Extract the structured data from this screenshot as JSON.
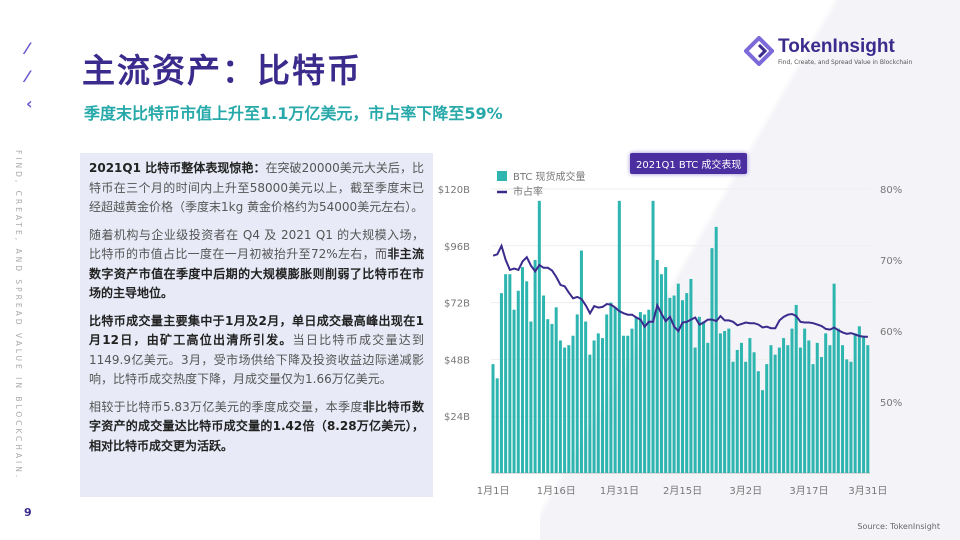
{
  "header": {
    "title": "主流资产：比特币",
    "subtitle": "季度末比特币市值上升至1.1万亿美元，市占率下降至59%"
  },
  "logo": {
    "name": "TokenInsight",
    "tagline": "Find, Create, and Spread Value in Blockchain"
  },
  "side": {
    "slogan": "FIND, CREATE, AND SPREAD VALUE IN BLOCKCHAIN.",
    "page": "9"
  },
  "textbox": {
    "p1_bold": "2021Q1 比特币整体表现惊艳：",
    "p1": "在突破20000美元大关后，比特币在三个月的时间内上升至58000美元以上，截至季度末已经超越黄金价格（季度末1kg 黄金价格约为54000美元左右）。",
    "p2": "随着机构与企业级投资者在 Q4 及 2021 Q1 的大规模入场，比特币的市值占比一度在一月初被抬升至72%左右，而",
    "p2_bold": "非主流数字资产市值在季度中后期的大规模膨胀则削弱了比特币在市场的主导地位。",
    "p3_bold": "比特币成交量主要集中于1月及2月，单日成交最高峰出现在1月12日，由矿工高位出清所引发。",
    "p3": "当日比特币成交量达到1149.9亿美元。3月，受市场供给下降及投资收益边际递减影响，比特币成交热度下降，月成交量仅为1.66万亿美元。",
    "p4": "相较于比特币5.83万亿美元的季度成交量，本季度",
    "p4_bold": "非比特币数字资产的成交量达比特币成交量的1.42倍（8.28万亿美元），相对比特币成交更为活跃。"
  },
  "source": "Source: TokenInsight",
  "colors": {
    "bar": "#2fb5b0",
    "line": "#3a2b8c",
    "title": "#3a2b8c",
    "subtitle": "#27a9a9"
  },
  "chart_data": {
    "type": "bar+line",
    "title": "2021Q1 BTC 成交表现",
    "legend": [
      "BTC 现货成交量",
      "市占率"
    ],
    "legend_placement": "top-left",
    "x_ticks": [
      "1月1日",
      "1月16日",
      "1月31日",
      "2月15日",
      "3月2日",
      "3月17日",
      "3月31日"
    ],
    "y_left": {
      "ticks": [
        "$24B",
        "$48B",
        "$72B",
        "$96B",
        "$120B"
      ],
      "range": [
        0,
        120
      ],
      "unit": "B USD"
    },
    "y_right": {
      "ticks": [
        "50%",
        "60%",
        "70%",
        "80%"
      ],
      "range": [
        40,
        80
      ]
    },
    "grid": true,
    "series": [
      {
        "name": "BTC 现货成交量",
        "type": "bar",
        "values": [
          46,
          40,
          76,
          84,
          84,
          69,
          77,
          87,
          81,
          64,
          90,
          115,
          75,
          65,
          63,
          70,
          56,
          53,
          54,
          58,
          67,
          94,
          64,
          50,
          56,
          59,
          57,
          67,
          72,
          70,
          115,
          58,
          58,
          61,
          66,
          68,
          67,
          69,
          115,
          90,
          84,
          87,
          74,
          75,
          80,
          73,
          76,
          82,
          53,
          66,
          64,
          55,
          95,
          104,
          59,
          60,
          61,
          47,
          52,
          55,
          47,
          57,
          51,
          43,
          35,
          46,
          54,
          50,
          53,
          57,
          54,
          61,
          71,
          53,
          61,
          56,
          46,
          55,
          49,
          59,
          54,
          80,
          61,
          54,
          48,
          47,
          59,
          62,
          58,
          54
        ]
      },
      {
        "name": "市占率",
        "type": "line",
        "values": [
          70.6,
          70.8,
          72.0,
          70.0,
          68.6,
          68.8,
          68.6,
          69.8,
          70.4,
          69.2,
          68.4,
          69.3,
          68.9,
          68.9,
          68.5,
          67.6,
          66.5,
          66.3,
          65.4,
          64.6,
          64.8,
          64.5,
          63.6,
          62.5,
          63.5,
          63.3,
          63.4,
          63.8,
          63.7,
          63.3,
          62.8,
          62.5,
          62.3,
          62.3,
          61.9,
          61.6,
          60.6,
          61.3,
          61.3,
          63.6,
          62.4,
          61.4,
          62.0,
          60.6,
          60.0,
          61.2,
          61.3,
          61.6,
          61.9,
          60.9,
          61.2,
          61.6,
          61.6,
          61.4,
          62.1,
          61.5,
          61.5,
          61.3,
          60.8,
          61.0,
          61.2,
          61.1,
          61.1,
          60.9,
          60.5,
          60.6,
          60.4,
          60.4,
          61.5,
          62.0,
          62.3,
          62.4,
          62.1,
          61.3,
          61.2,
          61.2,
          61.1,
          60.9,
          60.7,
          60.3,
          60.2,
          60.5,
          60.1,
          59.8,
          59.6,
          59.7,
          59.5,
          59.3,
          59.2,
          59.2
        ]
      }
    ]
  }
}
